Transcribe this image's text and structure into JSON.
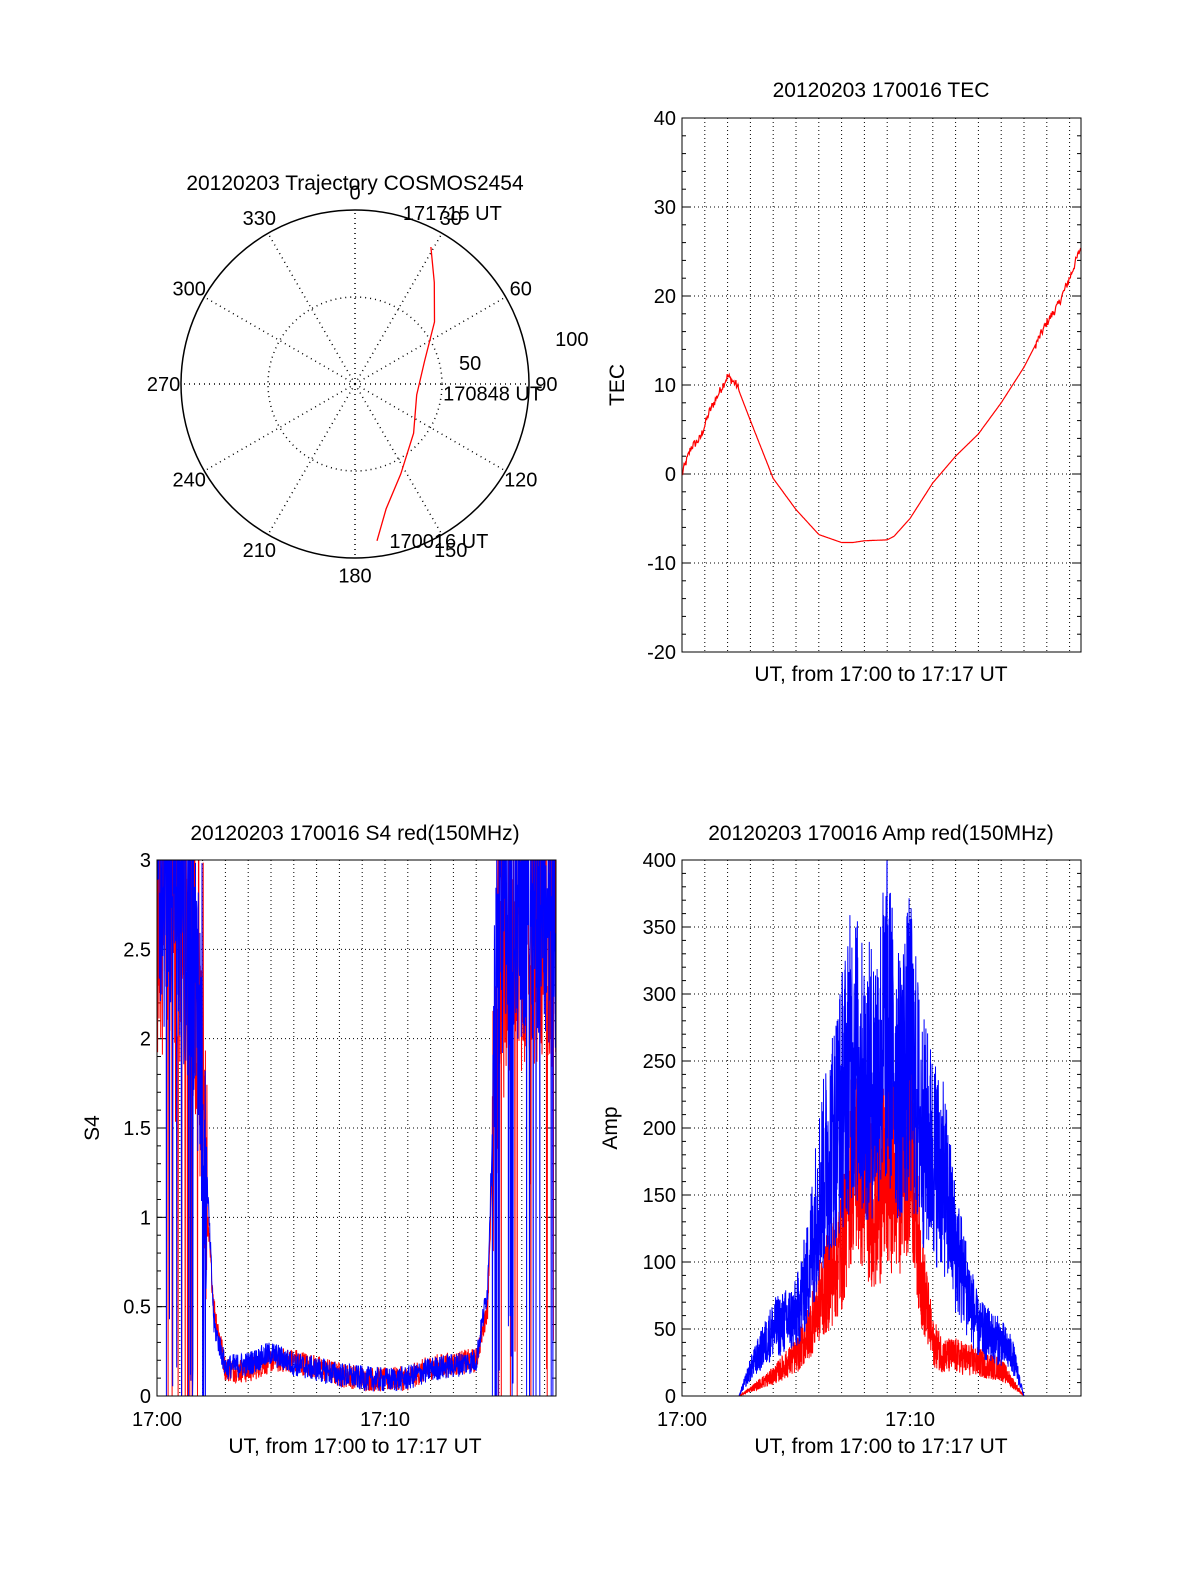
{
  "colors": {
    "red": "#ff0000",
    "blue": "#0000ff",
    "axis": "#000000",
    "grid": "#000000"
  },
  "chart_data": [
    {
      "id": "trajectory",
      "type": "polar",
      "title": "20120203 Trajectory COSMOS2454",
      "angle_ticks": [
        0,
        30,
        60,
        90,
        120,
        150,
        180,
        210,
        240,
        270,
        300,
        330
      ],
      "radius_ticks": [
        50,
        100
      ],
      "rlim": [
        0,
        100
      ],
      "grid": true,
      "series": [
        {
          "color": "red",
          "points": [
            {
              "az": 172,
              "r": 91
            },
            {
              "az": 166,
              "r": 74
            },
            {
              "az": 153,
              "r": 58
            },
            {
              "az": 130,
              "r": 44
            },
            {
              "az": 100,
              "r": 36
            },
            {
              "az": 72,
              "r": 42
            },
            {
              "az": 52,
              "r": 58
            },
            {
              "az": 38,
              "r": 74
            },
            {
              "az": 29,
              "r": 90
            }
          ]
        }
      ],
      "annotations": [
        {
          "text": "171715 UT",
          "az": 20,
          "r": 104
        },
        {
          "text": "170848 UT",
          "az": 96,
          "r": 59
        },
        {
          "text": "170016 UT",
          "az": 163,
          "r": 95
        }
      ]
    },
    {
      "id": "tec",
      "type": "line",
      "title": "20120203 170016 TEC",
      "xlabel": "UT, from 17:00 to 17:17 UT",
      "ylabel": "TEC",
      "ylim": [
        -20,
        40
      ],
      "y_ticks": [
        -20,
        -10,
        0,
        10,
        20,
        30,
        40
      ],
      "xlim": [
        0,
        17.5
      ],
      "x_ticks": [],
      "grid": true,
      "series": [
        {
          "color": "red",
          "x": [
            0,
            0.4,
            0.8,
            1.2,
            1.6,
            2.0,
            2.4,
            3,
            4,
            5,
            6,
            7,
            7.5,
            8,
            9,
            9.3,
            10,
            11,
            12,
            13,
            14,
            15,
            16,
            16.5,
            17,
            17.5
          ],
          "y": [
            0,
            3,
            4,
            7,
            9,
            11,
            10,
            6,
            -0.5,
            -4,
            -6.8,
            -7.7,
            -7.7,
            -7.5,
            -7.4,
            -7,
            -5,
            -1,
            2,
            4.5,
            8,
            12,
            17,
            19,
            22,
            25.5
          ]
        }
      ]
    },
    {
      "id": "s4",
      "type": "line",
      "title": "20120203 170016 S4 red(150MHz)",
      "xlabel": "UT, from 17:00 to 17:17 UT",
      "ylabel": "S4",
      "ylim": [
        0,
        3
      ],
      "y_ticks": [
        0,
        0.5,
        1,
        1.5,
        2,
        2.5,
        3
      ],
      "xlim": [
        0,
        17.5
      ],
      "x_ticks": [
        {
          "value": 0,
          "label": "17:00"
        },
        {
          "value": 10,
          "label": "17:10"
        }
      ],
      "grid": true,
      "series": [
        {
          "color": "red",
          "x": [
            0,
            0.5,
            1,
            1.5,
            2,
            2.2,
            2.5,
            3,
            4,
            5,
            6,
            7,
            8,
            9,
            10,
            11,
            12,
            13,
            14,
            14.5,
            15,
            16,
            17,
            17.5
          ],
          "y": [
            2.5,
            2.8,
            2.6,
            2.4,
            1.5,
            1.0,
            0.5,
            0.15,
            0.14,
            0.2,
            0.2,
            0.16,
            0.12,
            0.1,
            0.09,
            0.1,
            0.16,
            0.18,
            0.2,
            0.5,
            2.4,
            2.6,
            2.7,
            2.5
          ]
        },
        {
          "color": "blue",
          "x": [
            0,
            0.5,
            1,
            1.5,
            2,
            2.2,
            2.5,
            3,
            4,
            5,
            6,
            7,
            8,
            9,
            10,
            11,
            12,
            13,
            14,
            14.5,
            15,
            16,
            17,
            17.5
          ],
          "y": [
            2.8,
            2.9,
            2.7,
            2.5,
            1.8,
            1.2,
            0.4,
            0.16,
            0.18,
            0.24,
            0.18,
            0.15,
            0.12,
            0.1,
            0.09,
            0.1,
            0.15,
            0.17,
            0.2,
            0.6,
            2.7,
            2.8,
            2.8,
            2.6
          ]
        }
      ]
    },
    {
      "id": "amp",
      "type": "line",
      "title": "20120203 170016 Amp red(150MHz)",
      "xlabel": "UT, from 17:00 to 17:17 UT",
      "ylabel": "Amp",
      "ylim": [
        0,
        400
      ],
      "y_ticks": [
        0,
        50,
        100,
        150,
        200,
        250,
        300,
        350,
        400
      ],
      "xlim": [
        0,
        17.5
      ],
      "x_ticks": [
        {
          "value": 0,
          "label": "17:00"
        },
        {
          "value": 10,
          "label": "17:10"
        }
      ],
      "grid": true,
      "series": [
        {
          "color": "red",
          "x": [
            0,
            2.5,
            3,
            4,
            5,
            5.5,
            6,
            7,
            7.5,
            8,
            8.5,
            9,
            9.5,
            10,
            10.5,
            11,
            11.5,
            12,
            13,
            14,
            14.5,
            15,
            17.5
          ],
          "y": [
            0,
            0,
            5,
            15,
            30,
            45,
            70,
            110,
            190,
            160,
            140,
            170,
            160,
            200,
            90,
            40,
            30,
            30,
            25,
            20,
            10,
            0,
            0
          ]
        },
        {
          "color": "blue",
          "x": [
            0,
            2.5,
            3,
            4,
            5,
            5.5,
            6,
            7,
            7.5,
            8,
            8.5,
            9,
            9.5,
            10,
            10.5,
            11,
            11.5,
            12,
            13,
            14,
            14.5,
            15,
            17.5
          ],
          "y": [
            0,
            0,
            20,
            50,
            60,
            90,
            150,
            220,
            260,
            230,
            240,
            280,
            230,
            260,
            200,
            180,
            160,
            110,
            50,
            40,
            30,
            0,
            0
          ]
        }
      ]
    }
  ]
}
